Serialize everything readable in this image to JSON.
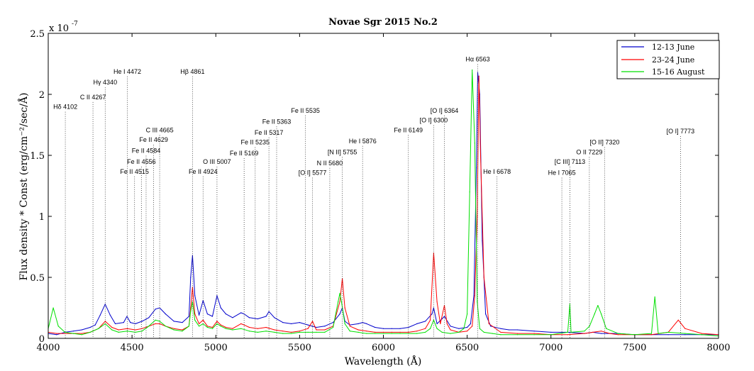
{
  "chart_data": {
    "type": "line",
    "title": "Novae Sgr 2015 No.2",
    "xlabel": "Wavelength (Å)",
    "ylabel": "Flux density * Const (erg/cm⁻²/sec/Å)",
    "y_exponent_label": "x 10",
    "y_exponent_power": "-7",
    "xlim": [
      4000,
      8000
    ],
    "ylim": [
      0,
      2.5
    ],
    "x_ticks": [
      4000,
      4500,
      5000,
      5500,
      6000,
      6500,
      7000,
      7500,
      8000
    ],
    "y_ticks": [
      0,
      0.5,
      1,
      1.5,
      2,
      2.5
    ],
    "y_tick_labels": [
      "0",
      "0.5",
      "1",
      "1.5",
      "2",
      "2.5"
    ],
    "grid": false,
    "legend_position": "top-right",
    "series": [
      {
        "name": "12-13 June",
        "color": "#0000cc",
        "x": [
          4000,
          4050,
          4100,
          4150,
          4200,
          4250,
          4280,
          4310,
          4340,
          4370,
          4400,
          4450,
          4470,
          4490,
          4520,
          4560,
          4600,
          4640,
          4665,
          4700,
          4750,
          4800,
          4840,
          4850,
          4861,
          4875,
          4900,
          4924,
          4950,
          4980,
          5007,
          5030,
          5060,
          5100,
          5150,
          5169,
          5200,
          5250,
          5300,
          5317,
          5350,
          5400,
          5450,
          5500,
          5550,
          5600,
          5650,
          5700,
          5740,
          5755,
          5770,
          5800,
          5850,
          5876,
          5900,
          5950,
          6000,
          6050,
          6100,
          6150,
          6200,
          6250,
          6290,
          6300,
          6320,
          6350,
          6364,
          6400,
          6450,
          6500,
          6520,
          6540,
          6555,
          6563,
          6575,
          6590,
          6610,
          6640,
          6700,
          6750,
          6800,
          6900,
          7000,
          7100,
          7200,
          7250,
          7300,
          7400,
          7500,
          7600,
          7700,
          7800,
          7900,
          8000
        ],
        "y": [
          0.04,
          0.03,
          0.05,
          0.06,
          0.07,
          0.09,
          0.11,
          0.19,
          0.28,
          0.19,
          0.12,
          0.13,
          0.18,
          0.13,
          0.12,
          0.14,
          0.17,
          0.24,
          0.25,
          0.2,
          0.14,
          0.13,
          0.18,
          0.5,
          0.68,
          0.35,
          0.19,
          0.31,
          0.2,
          0.18,
          0.35,
          0.25,
          0.2,
          0.17,
          0.21,
          0.2,
          0.17,
          0.16,
          0.18,
          0.22,
          0.17,
          0.13,
          0.12,
          0.13,
          0.11,
          0.09,
          0.1,
          0.13,
          0.2,
          0.25,
          0.14,
          0.11,
          0.12,
          0.13,
          0.12,
          0.09,
          0.08,
          0.08,
          0.08,
          0.09,
          0.12,
          0.14,
          0.2,
          0.25,
          0.12,
          0.16,
          0.18,
          0.1,
          0.08,
          0.09,
          0.12,
          0.35,
          1.4,
          2.18,
          2.0,
          0.8,
          0.2,
          0.1,
          0.08,
          0.07,
          0.07,
          0.06,
          0.05,
          0.05,
          0.04,
          0.05,
          0.04,
          0.04,
          0.03,
          0.03,
          0.03,
          0.03,
          0.03,
          0.03
        ]
      },
      {
        "name": "23-24 June",
        "color": "#ff0000",
        "x": [
          4000,
          4050,
          4100,
          4150,
          4200,
          4250,
          4300,
          4340,
          4380,
          4420,
          4471,
          4520,
          4560,
          4600,
          4640,
          4665,
          4700,
          4750,
          4800,
          4840,
          4850,
          4861,
          4875,
          4900,
          4924,
          4950,
          4980,
          5007,
          5030,
          5060,
          5100,
          5150,
          5169,
          5200,
          5250,
          5300,
          5350,
          5400,
          5450,
          5500,
          5550,
          5577,
          5600,
          5650,
          5700,
          5740,
          5755,
          5770,
          5800,
          5850,
          5900,
          5950,
          6000,
          6050,
          6100,
          6150,
          6200,
          6250,
          6280,
          6300,
          6320,
          6340,
          6364,
          6380,
          6400,
          6450,
          6500,
          6530,
          6545,
          6560,
          6570,
          6580,
          6600,
          6630,
          6700,
          6800,
          6900,
          7000,
          7100,
          7200,
          7250,
          7300,
          7350,
          7400,
          7500,
          7600,
          7700,
          7760,
          7800,
          7900,
          8000
        ],
        "y": [
          0.05,
          0.04,
          0.04,
          0.04,
          0.04,
          0.05,
          0.08,
          0.14,
          0.09,
          0.07,
          0.08,
          0.07,
          0.08,
          0.1,
          0.12,
          0.12,
          0.1,
          0.08,
          0.07,
          0.1,
          0.25,
          0.42,
          0.2,
          0.12,
          0.15,
          0.1,
          0.09,
          0.14,
          0.11,
          0.09,
          0.08,
          0.12,
          0.11,
          0.09,
          0.08,
          0.09,
          0.07,
          0.06,
          0.05,
          0.06,
          0.08,
          0.14,
          0.07,
          0.07,
          0.1,
          0.3,
          0.49,
          0.25,
          0.1,
          0.07,
          0.06,
          0.05,
          0.05,
          0.05,
          0.05,
          0.05,
          0.06,
          0.08,
          0.15,
          0.7,
          0.3,
          0.12,
          0.27,
          0.12,
          0.07,
          0.05,
          0.06,
          0.1,
          0.35,
          1.0,
          2.15,
          1.5,
          0.5,
          0.12,
          0.05,
          0.04,
          0.04,
          0.03,
          0.03,
          0.04,
          0.05,
          0.06,
          0.04,
          0.03,
          0.03,
          0.03,
          0.05,
          0.15,
          0.08,
          0.04,
          0.03
        ]
      },
      {
        "name": "15-16 August",
        "color": "#00e000",
        "x": [
          4000,
          4030,
          4060,
          4100,
          4150,
          4200,
          4250,
          4300,
          4340,
          4380,
          4420,
          4471,
          4520,
          4560,
          4600,
          4640,
          4665,
          4700,
          4750,
          4800,
          4840,
          4850,
          4861,
          4875,
          4900,
          4924,
          4950,
          4980,
          5007,
          5030,
          5060,
          5100,
          5150,
          5200,
          5250,
          5300,
          5350,
          5400,
          5450,
          5500,
          5550,
          5600,
          5650,
          5700,
          5730,
          5740,
          5750,
          5770,
          5800,
          5850,
          5900,
          5950,
          6000,
          6050,
          6100,
          6150,
          6200,
          6250,
          6280,
          6300,
          6320,
          6350,
          6400,
          6450,
          6480,
          6500,
          6515,
          6530,
          6545,
          6560,
          6575,
          6600,
          6650,
          6700,
          6800,
          6900,
          7000,
          7100,
          7113,
          7120,
          7200,
          7230,
          7260,
          7280,
          7300,
          7330,
          7400,
          7500,
          7600,
          7620,
          7640,
          7700,
          7800,
          7900,
          8000
        ],
        "y": [
          0.08,
          0.25,
          0.1,
          0.05,
          0.04,
          0.03,
          0.05,
          0.08,
          0.12,
          0.07,
          0.05,
          0.06,
          0.05,
          0.06,
          0.1,
          0.15,
          0.14,
          0.1,
          0.07,
          0.06,
          0.1,
          0.22,
          0.3,
          0.15,
          0.1,
          0.12,
          0.09,
          0.08,
          0.12,
          0.1,
          0.08,
          0.07,
          0.08,
          0.06,
          0.05,
          0.06,
          0.05,
          0.04,
          0.04,
          0.05,
          0.05,
          0.05,
          0.05,
          0.09,
          0.3,
          0.37,
          0.3,
          0.12,
          0.06,
          0.05,
          0.04,
          0.04,
          0.04,
          0.04,
          0.04,
          0.04,
          0.04,
          0.05,
          0.08,
          0.15,
          0.08,
          0.05,
          0.04,
          0.05,
          0.08,
          0.2,
          1.2,
          2.2,
          1.6,
          0.3,
          0.08,
          0.05,
          0.04,
          0.03,
          0.03,
          0.03,
          0.03,
          0.05,
          0.28,
          0.05,
          0.06,
          0.1,
          0.2,
          0.27,
          0.2,
          0.08,
          0.04,
          0.03,
          0.04,
          0.34,
          0.04,
          0.05,
          0.04,
          0.03,
          0.02
        ]
      }
    ],
    "annotations": [
      {
        "text": "Hδ 4102",
        "x": 4102,
        "label_y": 1.88
      },
      {
        "text": "C II 4267",
        "x": 4267,
        "label_y": 1.96
      },
      {
        "text": "Hγ 4340",
        "x": 4340,
        "label_y": 2.08
      },
      {
        "text": "He I 4472",
        "x": 4472,
        "label_y": 2.17
      },
      {
        "text": "Hβ 4861",
        "x": 4861,
        "label_y": 2.17
      },
      {
        "text": "C III 4665",
        "x": 4665,
        "label_y": 1.69
      },
      {
        "text": "Fe II 4629",
        "x": 4629,
        "label_y": 1.61
      },
      {
        "text": "Fe II 4584",
        "x": 4584,
        "label_y": 1.52
      },
      {
        "text": "Fe II 4556",
        "x": 4556,
        "label_y": 1.43
      },
      {
        "text": "Fe II 4515",
        "x": 4515,
        "label_y": 1.35
      },
      {
        "text": "Fe II 4924",
        "x": 4924,
        "label_y": 1.35
      },
      {
        "text": "O III 5007",
        "x": 5007,
        "label_y": 1.43
      },
      {
        "text": "Fe II 5169",
        "x": 5169,
        "label_y": 1.5
      },
      {
        "text": "Fe II 5235",
        "x": 5235,
        "label_y": 1.59
      },
      {
        "text": "Fe II 5317",
        "x": 5317,
        "label_y": 1.67
      },
      {
        "text": "Fe II 5363",
        "x": 5363,
        "label_y": 1.76
      },
      {
        "text": "Fe II 5535",
        "x": 5535,
        "label_y": 1.85
      },
      {
        "text": "[O I] 5577",
        "x": 5577,
        "label_y": 1.34
      },
      {
        "text": "N II 5680",
        "x": 5680,
        "label_y": 1.42
      },
      {
        "text": "[N II] 5755",
        "x": 5755,
        "label_y": 1.51
      },
      {
        "text": "He I 5876",
        "x": 5876,
        "label_y": 1.6
      },
      {
        "text": "Fe II 6149",
        "x": 6149,
        "label_y": 1.69
      },
      {
        "text": "[O I] 6300",
        "x": 6300,
        "label_y": 1.77
      },
      {
        "text": "[O I] 6364",
        "x": 6364,
        "label_y": 1.85
      },
      {
        "text": "Hα 6563",
        "x": 6563,
        "label_y": 2.27
      },
      {
        "text": "He I 6678",
        "x": 6678,
        "label_y": 1.35
      },
      {
        "text": "He I 7065",
        "x": 7065,
        "label_y": 1.34
      },
      {
        "text": "[C III] 7113",
        "x": 7113,
        "label_y": 1.43
      },
      {
        "text": "O II 7229",
        "x": 7229,
        "label_y": 1.51
      },
      {
        "text": "[O II] 7320",
        "x": 7320,
        "label_y": 1.59
      },
      {
        "text": "[O I] 7773",
        "x": 7773,
        "label_y": 1.68
      }
    ]
  }
}
